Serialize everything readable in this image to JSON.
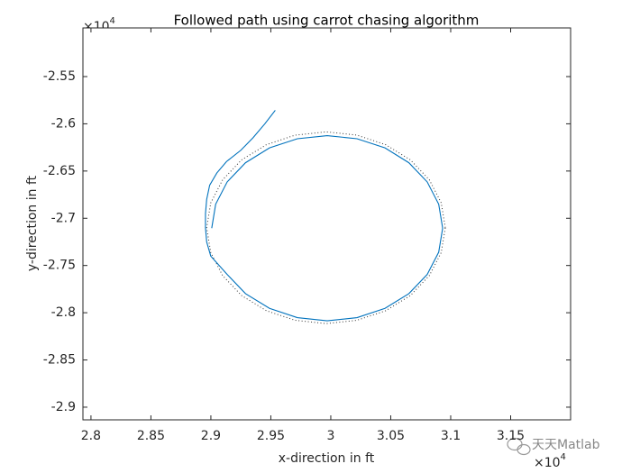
{
  "chart_data": {
    "type": "line",
    "title": "Followed path using carrot chasing algorithm",
    "x_label": "x-direction in ft",
    "y_label": "y-direction in ft",
    "x_multiplier": {
      "base": "×10",
      "exponent": "4"
    },
    "y_multiplier": {
      "base": "×10",
      "exponent": "4"
    },
    "watermark": "天天Matlab",
    "xlim": [
      2.7933,
      3.2
    ],
    "ylim": [
      -2.9134,
      -2.4985
    ],
    "xticks": [
      2.8,
      2.85,
      2.9,
      2.95,
      3,
      3.05,
      3.1,
      3.15
    ],
    "yticks": [
      -2.55,
      -2.6,
      -2.65,
      -2.7,
      -2.75,
      -2.8,
      -2.85,
      -2.9
    ],
    "series": [
      {
        "color": "#333333",
        "line_style": "dotted",
        "x": [
          3.0955,
          3.0921,
          3.0822,
          3.0664,
          3.0458,
          3.0218,
          2.996,
          2.9702,
          2.9463,
          2.9256,
          2.9098,
          2.8999,
          2.8965,
          2.8999,
          2.9098,
          2.9256,
          2.9463,
          2.9702,
          2.996,
          3.0218,
          3.0458,
          3.0664,
          3.0822,
          3.0921,
          3.0955
        ],
        "values": [
          -2.71,
          -2.6837,
          -2.6593,
          -2.6382,
          -2.6221,
          -2.612,
          -2.6085,
          -2.612,
          -2.6221,
          -2.6382,
          -2.6593,
          -2.6837,
          -2.71,
          -2.7363,
          -2.7607,
          -2.7818,
          -2.7979,
          -2.808,
          -2.8115,
          -2.808,
          -2.7979,
          -2.7818,
          -2.7607,
          -2.7363,
          -2.71
        ]
      },
      {
        "color": "#0072bd",
        "line_style": "solid",
        "x": [
          2.9537,
          2.945,
          2.935,
          2.925,
          2.913,
          2.905,
          2.899,
          2.8965,
          2.8955,
          2.8955,
          2.8965,
          2.8999,
          2.9136,
          2.9289,
          2.9489,
          2.9721,
          2.997,
          3.0219,
          3.0452,
          3.0651,
          3.0804,
          3.09,
          3.0933,
          3.09,
          3.0804,
          3.0651,
          3.0452,
          3.0219,
          2.997,
          2.9721,
          2.9489,
          2.9289,
          2.9136,
          2.904,
          2.9007
        ],
        "values": [
          -2.5857,
          -2.6,
          -2.615,
          -2.628,
          -2.64,
          -2.652,
          -2.665,
          -2.68,
          -2.695,
          -2.71,
          -2.725,
          -2.74,
          -2.7595,
          -2.7798,
          -2.7954,
          -2.8052,
          -2.8085,
          -2.8052,
          -2.7954,
          -2.7798,
          -2.7595,
          -2.7359,
          -2.7105,
          -2.6851,
          -2.6615,
          -2.6412,
          -2.6255,
          -2.6158,
          -2.6125,
          -2.6158,
          -2.6255,
          -2.6412,
          -2.6615,
          -2.6851,
          -2.7105
        ]
      }
    ]
  }
}
